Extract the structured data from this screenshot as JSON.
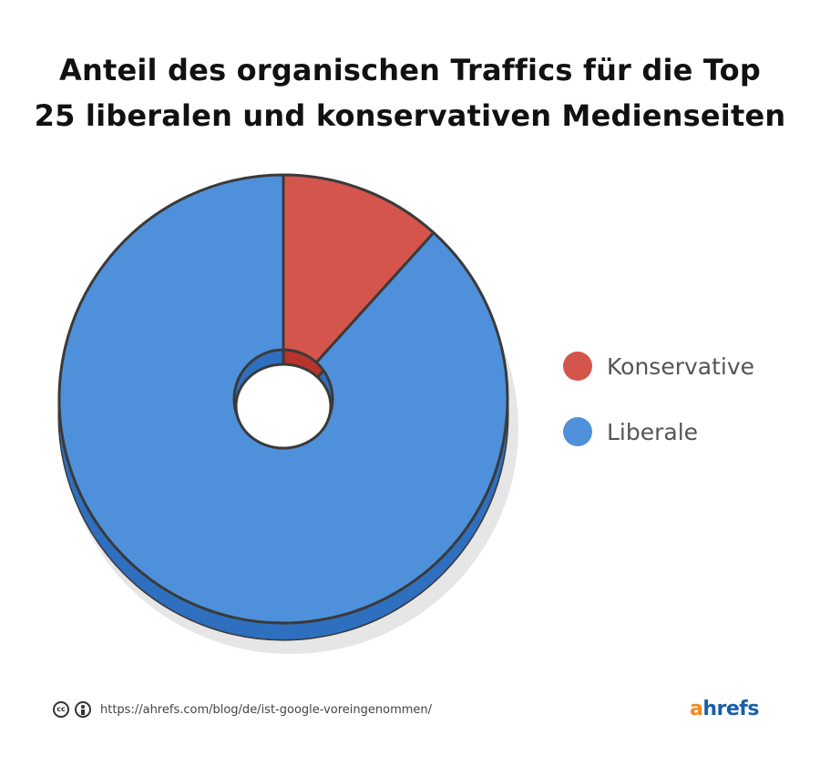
{
  "chart_data": {
    "type": "pie",
    "title_lines": [
      "Anteil des organischen Traffics für die Top",
      "25 liberalen und konservativen Medienseiten"
    ],
    "series": [
      {
        "name": "Konservative",
        "value": 11.7,
        "color": "#d4554c",
        "side_color": "#b8332c"
      },
      {
        "name": "Liberale",
        "value": 88.3,
        "color": "#4f90db",
        "side_color": "#2f6fbf"
      }
    ],
    "legend_position": "right"
  },
  "footer": {
    "cc_label": "cc",
    "source_url": "https://ahrefs.com/blog/de/ist-google-voreingenommen/"
  },
  "brand": {
    "first": "a",
    "rest": "hrefs"
  }
}
